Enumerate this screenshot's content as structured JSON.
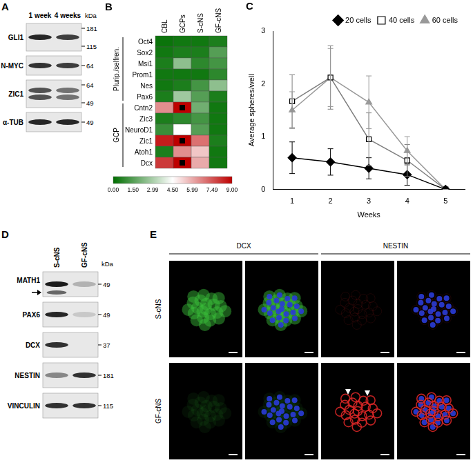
{
  "panels": [
    {
      "label": "A",
      "type": "western_blot",
      "lanes": [
        "1 week",
        "4 weeks"
      ],
      "marker_unit": "kDa",
      "rows": [
        {
          "protein": "GLI1",
          "markers": [
            181,
            115
          ]
        },
        {
          "protein": "N-MYC",
          "markers": [
            64
          ]
        },
        {
          "protein": "ZIC1",
          "markers": [
            64,
            49
          ]
        },
        {
          "protein": "α-TUB",
          "markers": [
            49
          ]
        }
      ]
    },
    {
      "label": "D",
      "type": "western_blot",
      "lanes": [
        "S-cNS",
        "GF-cNS"
      ],
      "marker_unit": "kDa",
      "rows": [
        {
          "protein": "MATH1",
          "markers": [
            49
          ]
        },
        {
          "protein": "PAX6",
          "markers": [
            49
          ]
        },
        {
          "protein": "DCX",
          "markers": [
            37
          ]
        },
        {
          "protein": "NESTIN",
          "markers": [
            181
          ]
        },
        {
          "protein": "VINCULIN",
          "markers": [
            115
          ]
        }
      ]
    },
    {
      "label": "E",
      "type": "microscopy",
      "stains": [
        "DCX",
        "NESTIN"
      ],
      "conditions": [
        "S-cNS",
        "GF-cNS"
      ]
    }
  ],
  "chart_data": [
    {
      "panel": "B",
      "type": "heatmap",
      "columns": [
        "CBL",
        "GCPs",
        "S-cNS",
        "GF-cNS"
      ],
      "rows": [
        "Oct4",
        "Sox2",
        "Msi1",
        "Prom1",
        "Nes",
        "Pax6",
        "Cntn2",
        "Zic3",
        "NeuroD1",
        "Zic1",
        "Atoh1",
        "Dcx"
      ],
      "row_groups": [
        {
          "name": "Plurip./selfren.",
          "rows": [
            "Oct4",
            "Sox2",
            "Msi1",
            "Prom1",
            "Nes",
            "Pax6"
          ]
        },
        {
          "name": "GCP",
          "rows": [
            "Cntn2",
            "Zic3",
            "NeuroD1",
            "Zic1",
            "Atoh1",
            "Dcx"
          ]
        }
      ],
      "cells": [
        [
          0.2,
          0.3,
          0.3,
          0.5
        ],
        [
          0.3,
          0.5,
          0.5,
          1.5
        ],
        [
          0.5,
          2.5,
          0.8,
          1.2
        ],
        [
          0.3,
          0.3,
          0.3,
          0.8
        ],
        [
          0.3,
          0.5,
          1.2,
          2.5
        ],
        [
          0.5,
          2.8,
          1.5,
          0.5
        ],
        [
          6.5,
          10,
          2.0,
          0.3
        ],
        [
          0.5,
          0.8,
          1.2,
          0.3
        ],
        [
          1.0,
          4.5,
          1.5,
          0.3
        ],
        [
          8.5,
          10,
          7.0,
          0.5
        ],
        [
          0.5,
          6.5,
          5.5,
          0.3
        ],
        [
          8.0,
          10,
          6.0,
          0.3
        ]
      ],
      "colorbar": {
        "range": [
          0,
          9
        ],
        "ticks": [
          {
            "value": 0,
            "label": "0.00"
          },
          {
            "value": 1.5,
            "label": "1.50"
          },
          2.99,
          {
            "value": 4.5,
            "label": "4.50"
          },
          5.99,
          7.49,
          {
            "value": 9,
            "label": "9.00"
          }
        ],
        "colors": [
          "#006e00",
          "#ffffff",
          "#be0000"
        ]
      }
    },
    {
      "panel": "C",
      "type": "line",
      "x": [
        1,
        2,
        3,
        4,
        5
      ],
      "x_label": "Weeks",
      "y_label": "Average spheres/well",
      "xlim": [
        0.5,
        5.5
      ],
      "xticks": [
        1,
        2,
        3,
        4,
        5
      ],
      "ylim": [
        0,
        3
      ],
      "yticks": [
        0,
        1,
        2,
        3
      ],
      "grid": false,
      "legend": "upper right",
      "series": [
        {
          "name": "20 cells",
          "color": "#000000",
          "marker": "diamond",
          "values": [
            0.6,
            0.52,
            0.4,
            0.28,
            0
          ],
          "errors": [
            0.3,
            0.25,
            0.2,
            0.2,
            0
          ]
        },
        {
          "name": "40 cells",
          "color": "#808080",
          "marker": "open square",
          "values": [
            1.67,
            2.12,
            0.95,
            0.55,
            0
          ],
          "errors": [
            0.5,
            0.6,
            0.5,
            0.3,
            0
          ]
        },
        {
          "name": "60 cells",
          "color": "#999999",
          "marker": "triangle",
          "values": [
            1.5,
            2.12,
            1.65,
            0.73,
            0
          ],
          "errors": [
            0.35,
            0.55,
            0.5,
            0.27,
            0
          ]
        }
      ]
    }
  ]
}
